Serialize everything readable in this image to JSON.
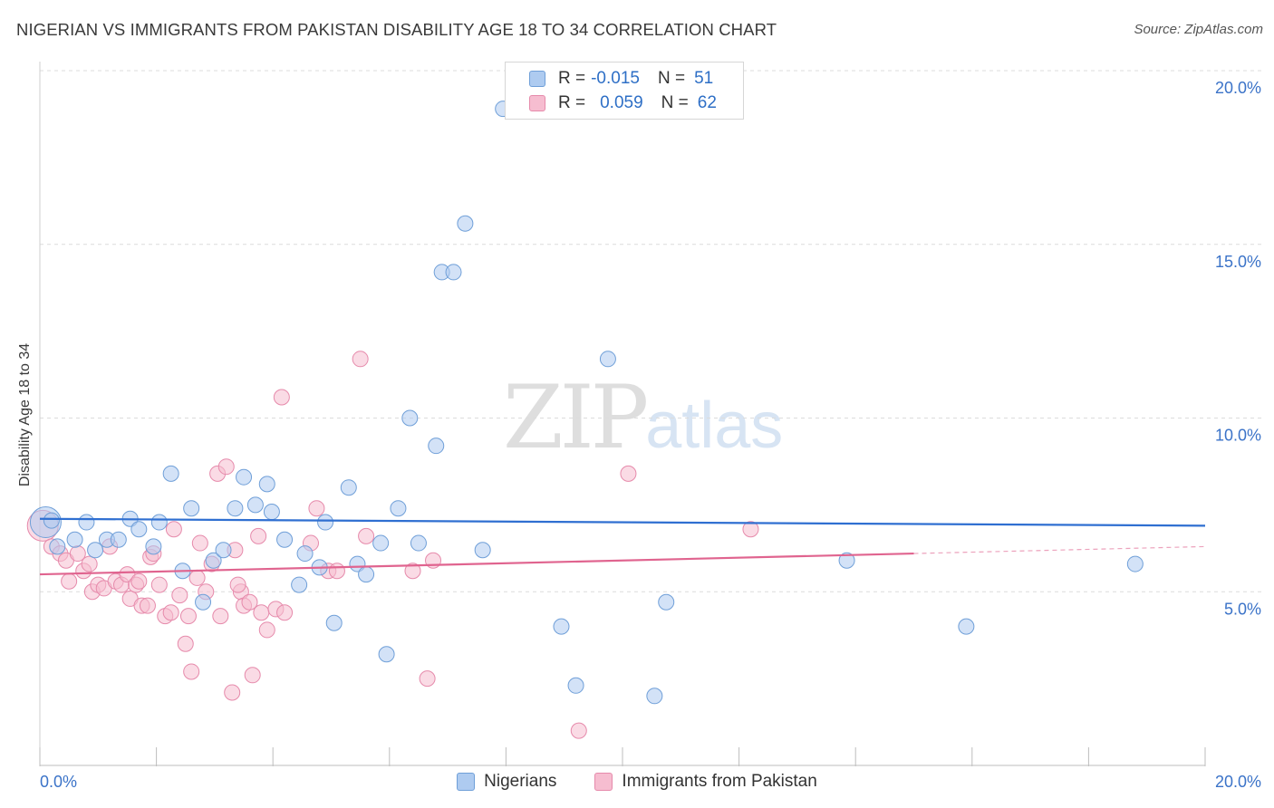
{
  "title": "NIGERIAN VS IMMIGRANTS FROM PAKISTAN DISABILITY AGE 18 TO 34 CORRELATION CHART",
  "source": "Source: ZipAtlas.com",
  "watermark": {
    "zip": "ZIP",
    "atlas": "atlas"
  },
  "legend": {
    "rows": [
      {
        "r_label": "R =",
        "r_value": "-0.015",
        "n_label": "N =",
        "n_value": "51"
      },
      {
        "r_label": "R =",
        "r_value": "0.059",
        "n_label": "N =",
        "n_value": "62"
      }
    ]
  },
  "colors": {
    "series_a_fill": "#aecbf0",
    "series_a_stroke": "#6f9fd8",
    "series_a_line": "#2f6fd1",
    "series_b_fill": "#f6bdd0",
    "series_b_stroke": "#e68aab",
    "series_b_line": "#e0648f",
    "axis_text": "#3b73c8",
    "grid": "#dcdcdc"
  },
  "chart_data": {
    "type": "scatter",
    "title": "NIGERIAN VS IMMIGRANTS FROM PAKISTAN DISABILITY AGE 18 TO 34 CORRELATION CHART",
    "xlabel": "",
    "ylabel": "Disability Age 18 to 34",
    "xlim": [
      0,
      20
    ],
    "ylim": [
      0,
      20
    ],
    "x_tick_labels": [
      "0.0%",
      "20.0%"
    ],
    "y_ticks": [
      5,
      10,
      15,
      20
    ],
    "y_tick_labels": [
      "5.0%",
      "10.0%",
      "15.0%",
      "20.0%"
    ],
    "series": [
      {
        "name": "Nigerians",
        "trend": {
          "x0": 0,
          "y0": 7.1,
          "x1": 20,
          "y1": 6.9
        },
        "points": [
          {
            "x": 0.1,
            "y": 7.0,
            "big": true
          },
          {
            "x": 0.3,
            "y": 6.3
          },
          {
            "x": 0.6,
            "y": 6.5
          },
          {
            "x": 0.8,
            "y": 7.0
          },
          {
            "x": 0.95,
            "y": 6.2
          },
          {
            "x": 1.15,
            "y": 6.5
          },
          {
            "x": 1.35,
            "y": 6.5
          },
          {
            "x": 1.55,
            "y": 7.1
          },
          {
            "x": 1.7,
            "y": 6.8
          },
          {
            "x": 1.95,
            "y": 6.3
          },
          {
            "x": 2.05,
            "y": 7.0
          },
          {
            "x": 2.25,
            "y": 8.4
          },
          {
            "x": 2.45,
            "y": 5.6
          },
          {
            "x": 2.6,
            "y": 7.4
          },
          {
            "x": 2.8,
            "y": 4.7
          },
          {
            "x": 2.98,
            "y": 5.9
          },
          {
            "x": 3.15,
            "y": 6.2
          },
          {
            "x": 3.35,
            "y": 7.4
          },
          {
            "x": 3.5,
            "y": 8.3
          },
          {
            "x": 3.7,
            "y": 7.5
          },
          {
            "x": 3.9,
            "y": 8.1
          },
          {
            "x": 3.98,
            "y": 7.3
          },
          {
            "x": 4.2,
            "y": 6.5
          },
          {
            "x": 4.45,
            "y": 5.2
          },
          {
            "x": 4.55,
            "y": 6.1
          },
          {
            "x": 4.8,
            "y": 5.7
          },
          {
            "x": 4.9,
            "y": 7.0
          },
          {
            "x": 5.05,
            "y": 4.1
          },
          {
            "x": 5.3,
            "y": 8.0
          },
          {
            "x": 5.45,
            "y": 5.8
          },
          {
            "x": 5.6,
            "y": 5.5
          },
          {
            "x": 5.85,
            "y": 6.4
          },
          {
            "x": 5.95,
            "y": 3.2
          },
          {
            "x": 6.15,
            "y": 7.4
          },
          {
            "x": 6.35,
            "y": 10.0
          },
          {
            "x": 6.5,
            "y": 6.4
          },
          {
            "x": 6.8,
            "y": 9.2
          },
          {
            "x": 6.9,
            "y": 14.2
          },
          {
            "x": 7.1,
            "y": 14.2
          },
          {
            "x": 7.3,
            "y": 15.6
          },
          {
            "x": 7.6,
            "y": 6.2
          },
          {
            "x": 7.95,
            "y": 18.9
          },
          {
            "x": 8.95,
            "y": 4.0
          },
          {
            "x": 9.2,
            "y": 2.3
          },
          {
            "x": 9.75,
            "y": 11.7
          },
          {
            "x": 10.55,
            "y": 2.0
          },
          {
            "x": 10.75,
            "y": 4.7
          },
          {
            "x": 13.85,
            "y": 5.9
          },
          {
            "x": 15.9,
            "y": 4.0
          },
          {
            "x": 18.8,
            "y": 5.8
          },
          {
            "x": 0.2,
            "y": 7.05
          }
        ]
      },
      {
        "name": "Immigrants from Pakistan",
        "trend": {
          "x0": 0,
          "y0": 5.5,
          "x1": 15,
          "y1": 6.1
        },
        "trend_dashed": {
          "x0": 15,
          "y0": 6.1,
          "x1": 20,
          "y1": 6.3
        },
        "points": [
          {
            "x": 0.05,
            "y": 6.9,
            "big": true
          },
          {
            "x": 0.2,
            "y": 6.3
          },
          {
            "x": 0.35,
            "y": 6.1
          },
          {
            "x": 0.45,
            "y": 5.9
          },
          {
            "x": 0.5,
            "y": 5.3
          },
          {
            "x": 0.65,
            "y": 6.1
          },
          {
            "x": 0.75,
            "y": 5.6
          },
          {
            "x": 0.85,
            "y": 5.8
          },
          {
            "x": 0.9,
            "y": 5.0
          },
          {
            "x": 1.0,
            "y": 5.2
          },
          {
            "x": 1.1,
            "y": 5.1
          },
          {
            "x": 1.2,
            "y": 6.3
          },
          {
            "x": 1.3,
            "y": 5.3
          },
          {
            "x": 1.4,
            "y": 5.2
          },
          {
            "x": 1.5,
            "y": 5.5
          },
          {
            "x": 1.55,
            "y": 4.8
          },
          {
            "x": 1.65,
            "y": 5.2
          },
          {
            "x": 1.7,
            "y": 5.3
          },
          {
            "x": 1.75,
            "y": 4.6
          },
          {
            "x": 1.85,
            "y": 4.6
          },
          {
            "x": 1.9,
            "y": 6.0
          },
          {
            "x": 1.95,
            "y": 6.1
          },
          {
            "x": 2.05,
            "y": 5.2
          },
          {
            "x": 2.15,
            "y": 4.3
          },
          {
            "x": 2.25,
            "y": 4.4
          },
          {
            "x": 2.3,
            "y": 6.8
          },
          {
            "x": 2.4,
            "y": 4.9
          },
          {
            "x": 2.5,
            "y": 3.5
          },
          {
            "x": 2.55,
            "y": 4.3
          },
          {
            "x": 2.6,
            "y": 2.7
          },
          {
            "x": 2.7,
            "y": 5.4
          },
          {
            "x": 2.75,
            "y": 6.4
          },
          {
            "x": 2.85,
            "y": 5.0
          },
          {
            "x": 2.95,
            "y": 5.8
          },
          {
            "x": 3.05,
            "y": 8.4
          },
          {
            "x": 3.1,
            "y": 4.3
          },
          {
            "x": 3.2,
            "y": 8.6
          },
          {
            "x": 3.3,
            "y": 2.1
          },
          {
            "x": 3.35,
            "y": 6.2
          },
          {
            "x": 3.45,
            "y": 5.0
          },
          {
            "x": 3.5,
            "y": 4.6
          },
          {
            "x": 3.6,
            "y": 4.7
          },
          {
            "x": 3.65,
            "y": 2.6
          },
          {
            "x": 3.75,
            "y": 6.6
          },
          {
            "x": 3.8,
            "y": 4.4
          },
          {
            "x": 3.9,
            "y": 3.9
          },
          {
            "x": 4.05,
            "y": 4.5
          },
          {
            "x": 4.15,
            "y": 10.6
          },
          {
            "x": 4.2,
            "y": 4.4
          },
          {
            "x": 4.65,
            "y": 6.4
          },
          {
            "x": 4.75,
            "y": 7.4
          },
          {
            "x": 4.95,
            "y": 5.6
          },
          {
            "x": 5.1,
            "y": 5.6
          },
          {
            "x": 5.5,
            "y": 11.7
          },
          {
            "x": 5.6,
            "y": 6.6
          },
          {
            "x": 6.4,
            "y": 5.6
          },
          {
            "x": 6.65,
            "y": 2.5
          },
          {
            "x": 6.75,
            "y": 5.9
          },
          {
            "x": 9.25,
            "y": 1.0
          },
          {
            "x": 10.1,
            "y": 8.4
          },
          {
            "x": 12.2,
            "y": 6.8
          },
          {
            "x": 3.4,
            "y": 5.2
          }
        ]
      }
    ]
  }
}
